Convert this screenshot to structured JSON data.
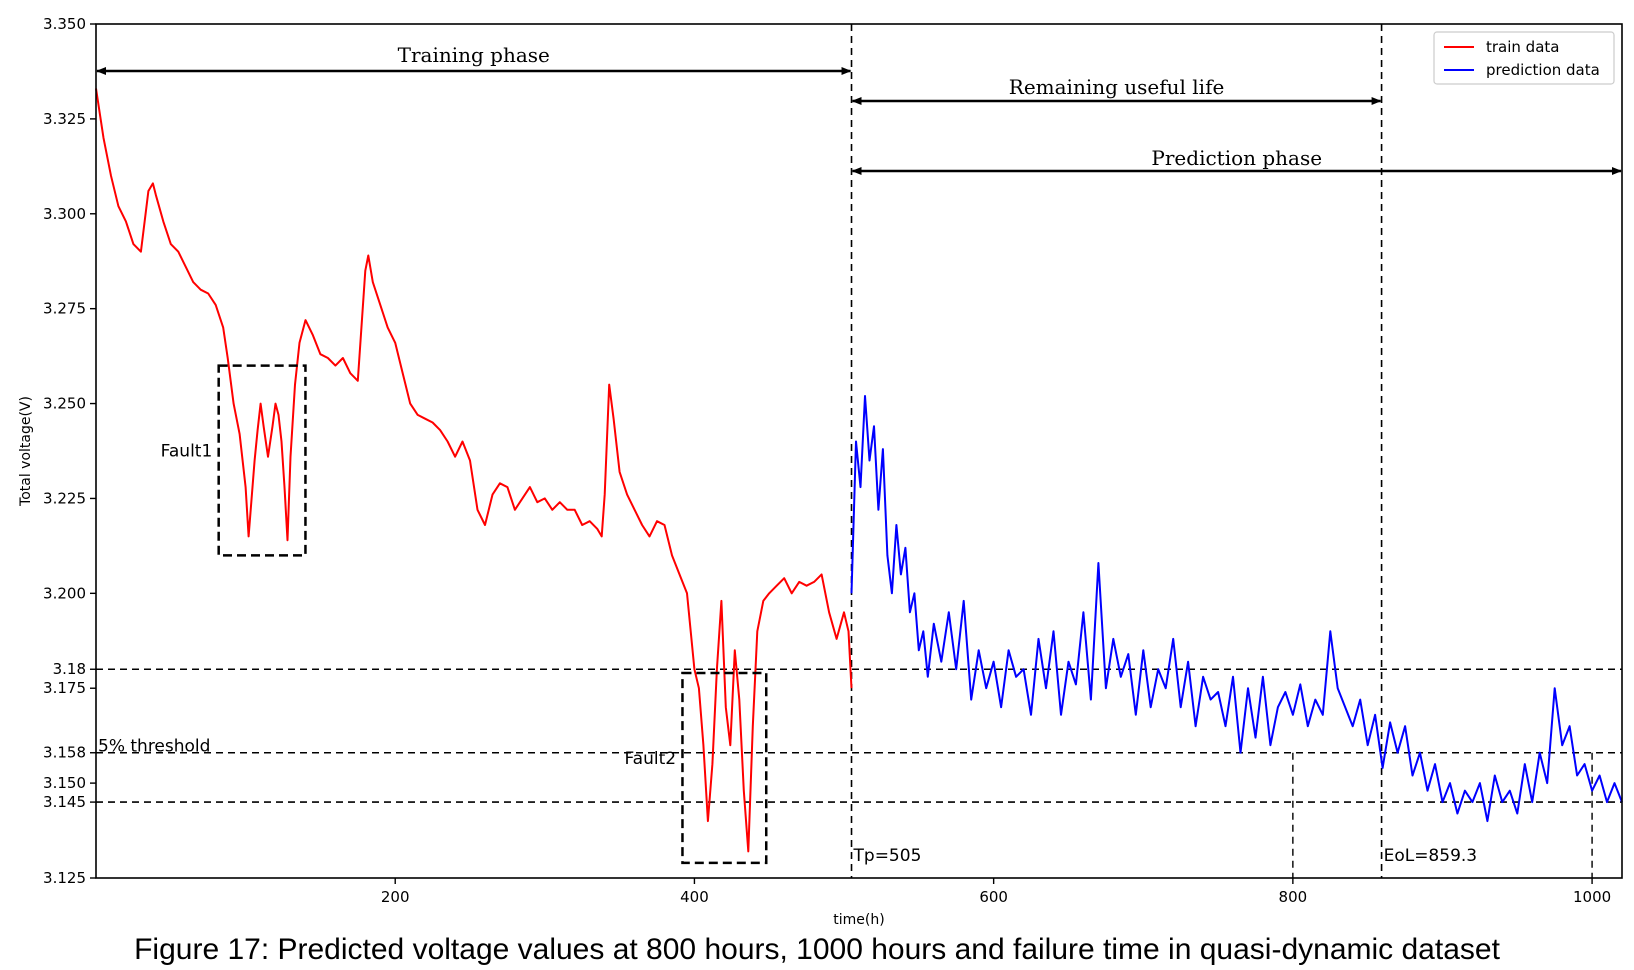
{
  "caption": "Figure 17: Predicted voltage values at 800 hours, 1000 hours and failure time in quasi-dynamic dataset",
  "chart_data": {
    "type": "line",
    "xlabel": "time(h)",
    "ylabel": "Total voltage(V)",
    "xlim": [
      0,
      1020
    ],
    "ylim": [
      3.125,
      3.35
    ],
    "x_ticks": [
      200,
      400,
      600,
      800,
      1000
    ],
    "x_tick_labels": [
      "200",
      "400",
      "600",
      "800",
      "1000"
    ],
    "y_ticks": [
      3.125,
      3.145,
      3.15,
      3.158,
      3.175,
      3.18,
      3.2,
      3.225,
      3.25,
      3.275,
      3.3,
      3.325,
      3.35
    ],
    "y_tick_labels": [
      "3.125",
      "3.145",
      "3.150",
      "3.158",
      "3.175",
      "3.18",
      "3.200",
      "3.225",
      "3.250",
      "3.275",
      "3.300",
      "3.325",
      "3.350"
    ],
    "legend": {
      "placement": "top-right",
      "entries": [
        "train data",
        "prediction data"
      ]
    },
    "series": [
      {
        "name": "train data",
        "color": "#ff0000",
        "x": [
          0,
          5,
          10,
          15,
          20,
          25,
          30,
          35,
          38,
          40,
          45,
          50,
          55,
          60,
          65,
          70,
          75,
          80,
          85,
          88,
          92,
          96,
          98,
          100,
          102,
          104,
          106,
          108,
          110,
          112,
          115,
          118,
          120,
          122,
          124,
          126,
          128,
          130,
          133,
          136,
          140,
          145,
          150,
          155,
          160,
          165,
          170,
          175,
          180,
          182,
          185,
          190,
          195,
          200,
          205,
          210,
          215,
          220,
          225,
          230,
          235,
          240,
          245,
          250,
          255,
          260,
          265,
          270,
          275,
          280,
          285,
          290,
          295,
          300,
          305,
          310,
          315,
          320,
          325,
          330,
          335,
          338,
          340,
          343,
          346,
          350,
          355,
          360,
          365,
          370,
          375,
          380,
          385,
          390,
          395,
          400,
          403,
          406,
          409,
          412,
          415,
          418,
          421,
          424,
          427,
          430,
          433,
          436,
          439,
          442,
          446,
          450,
          455,
          460,
          465,
          470,
          475,
          480,
          485,
          490,
          495,
          500,
          503,
          505
        ],
        "y": [
          3.333,
          3.32,
          3.31,
          3.302,
          3.298,
          3.292,
          3.29,
          3.306,
          3.308,
          3.305,
          3.298,
          3.292,
          3.29,
          3.286,
          3.282,
          3.28,
          3.279,
          3.276,
          3.27,
          3.262,
          3.25,
          3.242,
          3.235,
          3.228,
          3.215,
          3.225,
          3.235,
          3.243,
          3.25,
          3.244,
          3.236,
          3.244,
          3.25,
          3.247,
          3.24,
          3.228,
          3.214,
          3.236,
          3.255,
          3.266,
          3.272,
          3.268,
          3.263,
          3.262,
          3.26,
          3.262,
          3.258,
          3.256,
          3.285,
          3.289,
          3.282,
          3.276,
          3.27,
          3.266,
          3.258,
          3.25,
          3.247,
          3.246,
          3.245,
          3.243,
          3.24,
          3.236,
          3.24,
          3.235,
          3.222,
          3.218,
          3.226,
          3.229,
          3.228,
          3.222,
          3.225,
          3.228,
          3.224,
          3.225,
          3.222,
          3.224,
          3.222,
          3.222,
          3.218,
          3.219,
          3.217,
          3.215,
          3.226,
          3.255,
          3.246,
          3.232,
          3.226,
          3.222,
          3.218,
          3.215,
          3.219,
          3.218,
          3.21,
          3.205,
          3.2,
          3.18,
          3.175,
          3.16,
          3.14,
          3.155,
          3.18,
          3.198,
          3.17,
          3.16,
          3.185,
          3.172,
          3.148,
          3.132,
          3.165,
          3.19,
          3.198,
          3.2,
          3.202,
          3.204,
          3.2,
          3.203,
          3.202,
          3.203,
          3.205,
          3.195,
          3.188,
          3.195,
          3.19,
          3.175
        ]
      },
      {
        "name": "prediction data",
        "color": "#0000ff",
        "x": [
          505,
          508,
          511,
          514,
          517,
          520,
          523,
          526,
          529,
          532,
          535,
          538,
          541,
          544,
          547,
          550,
          553,
          556,
          560,
          565,
          570,
          575,
          580,
          585,
          590,
          595,
          600,
          605,
          610,
          615,
          620,
          625,
          630,
          635,
          640,
          645,
          650,
          655,
          660,
          665,
          670,
          675,
          680,
          685,
          690,
          695,
          700,
          705,
          710,
          715,
          720,
          725,
          730,
          735,
          740,
          745,
          750,
          755,
          760,
          765,
          770,
          775,
          780,
          785,
          790,
          795,
          800,
          805,
          810,
          815,
          820,
          825,
          830,
          835,
          840,
          845,
          850,
          855,
          860,
          865,
          870,
          875,
          880,
          885,
          890,
          895,
          900,
          905,
          910,
          915,
          920,
          925,
          930,
          935,
          940,
          945,
          950,
          955,
          960,
          965,
          970,
          975,
          980,
          985,
          990,
          995,
          1000,
          1005,
          1010,
          1015,
          1020
        ],
        "y": [
          3.2,
          3.24,
          3.228,
          3.252,
          3.235,
          3.244,
          3.222,
          3.238,
          3.21,
          3.2,
          3.218,
          3.205,
          3.212,
          3.195,
          3.2,
          3.185,
          3.19,
          3.178,
          3.192,
          3.182,
          3.195,
          3.18,
          3.198,
          3.172,
          3.185,
          3.175,
          3.182,
          3.17,
          3.185,
          3.178,
          3.18,
          3.168,
          3.188,
          3.175,
          3.19,
          3.168,
          3.182,
          3.176,
          3.195,
          3.172,
          3.208,
          3.175,
          3.188,
          3.178,
          3.184,
          3.168,
          3.185,
          3.17,
          3.18,
          3.175,
          3.188,
          3.17,
          3.182,
          3.165,
          3.178,
          3.172,
          3.174,
          3.165,
          3.178,
          3.158,
          3.175,
          3.162,
          3.178,
          3.16,
          3.17,
          3.174,
          3.168,
          3.176,
          3.165,
          3.172,
          3.168,
          3.19,
          3.175,
          3.17,
          3.165,
          3.172,
          3.16,
          3.168,
          3.154,
          3.166,
          3.158,
          3.165,
          3.152,
          3.158,
          3.148,
          3.155,
          3.145,
          3.15,
          3.142,
          3.148,
          3.145,
          3.15,
          3.14,
          3.152,
          3.145,
          3.148,
          3.142,
          3.155,
          3.145,
          3.158,
          3.15,
          3.175,
          3.16,
          3.165,
          3.152,
          3.155,
          3.148,
          3.152,
          3.145,
          3.15,
          3.145
        ]
      }
    ],
    "annotations": {
      "training_phase": {
        "text": "Training phase",
        "x_start": 0,
        "x_end": 505
      },
      "remaining_useful_life": {
        "text": "Remaining useful life",
        "x_start": 505,
        "x_end": 859.3
      },
      "prediction_phase": {
        "text": "Prediction phase",
        "x_start": 505,
        "x_end": 1020
      },
      "threshold_label": "5% threshold",
      "threshold_lines": [
        3.18,
        3.158,
        3.145
      ],
      "tp_label": "Tp=505",
      "tp_x": 505,
      "eol_label": "EoL=859.3",
      "eol_x": 859.3,
      "vertical_marks": [
        800,
        1000
      ],
      "fault1": {
        "label": "Fault1",
        "x0": 82,
        "x1": 140,
        "y0": 3.21,
        "y1": 3.26
      },
      "fault2": {
        "label": "Fault2",
        "x0": 392,
        "x1": 448,
        "y0": 3.129,
        "y1": 3.179
      }
    }
  }
}
